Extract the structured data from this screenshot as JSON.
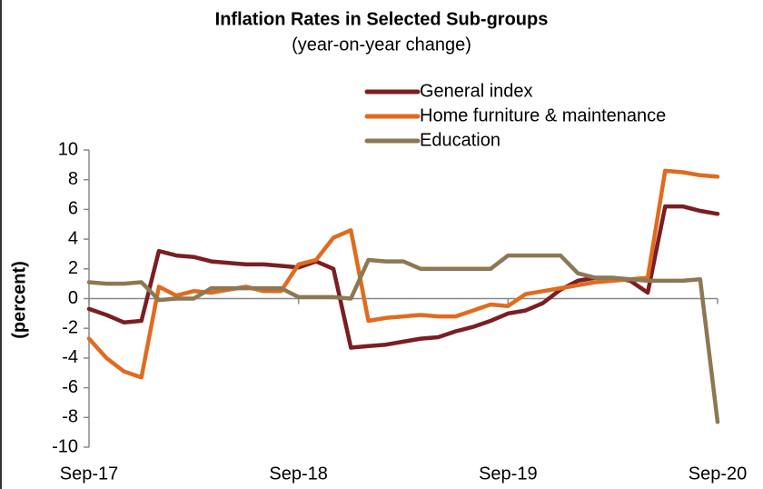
{
  "chart_data": {
    "type": "line",
    "title": "Inflation Rates in Selected Sub-groups",
    "subtitle": "(year-on-year change)",
    "y_label": "(percent)",
    "categories": [
      "Sep-17",
      null,
      null,
      null,
      null,
      null,
      null,
      null,
      null,
      null,
      null,
      null,
      "Sep-18",
      null,
      null,
      null,
      null,
      null,
      null,
      null,
      null,
      null,
      null,
      null,
      "Sep-19",
      null,
      null,
      null,
      null,
      null,
      null,
      null,
      null,
      null,
      null,
      null,
      "Sep-20"
    ],
    "series": [
      {
        "name": "General index",
        "color": "#7b1e24",
        "values": [
          -0.7,
          -1.1,
          -1.6,
          -1.5,
          3.2,
          2.9,
          2.8,
          2.5,
          2.4,
          2.3,
          2.3,
          2.2,
          2.1,
          2.5,
          2.0,
          -3.3,
          -3.2,
          -3.1,
          -2.9,
          -2.7,
          -2.6,
          -2.2,
          -1.9,
          -1.5,
          -1.0,
          -0.8,
          -0.3,
          0.6,
          1.2,
          1.4,
          1.4,
          1.2,
          0.4,
          6.2,
          6.2,
          5.9,
          5.7
        ]
      },
      {
        "name": "Home furniture & maintenance",
        "color": "#e06b1f",
        "values": [
          -2.7,
          -4.0,
          -4.9,
          -5.3,
          0.8,
          0.2,
          0.5,
          0.4,
          0.6,
          0.8,
          0.5,
          0.5,
          2.3,
          2.6,
          4.1,
          4.6,
          -1.5,
          -1.3,
          -1.2,
          -1.1,
          -1.2,
          -1.2,
          -0.8,
          -0.4,
          -0.5,
          0.3,
          0.5,
          0.7,
          0.9,
          1.1,
          1.2,
          1.3,
          1.4,
          8.6,
          8.5,
          8.3,
          8.2
        ]
      },
      {
        "name": "Education",
        "color": "#8c7853",
        "values": [
          1.1,
          1.0,
          1.0,
          1.1,
          -0.1,
          0.0,
          0.0,
          0.7,
          0.7,
          0.7,
          0.7,
          0.7,
          0.1,
          0.1,
          0.1,
          0.0,
          2.6,
          2.5,
          2.5,
          2.0,
          2.0,
          2.0,
          2.0,
          2.0,
          2.9,
          2.9,
          2.9,
          2.9,
          1.7,
          1.4,
          1.4,
          1.3,
          1.2,
          1.2,
          1.2,
          1.3,
          -8.3
        ]
      }
    ],
    "ylim": [
      -10,
      10
    ],
    "yticks": [
      -10,
      -8,
      -6,
      -4,
      -2,
      0,
      2,
      4,
      6,
      8,
      10
    ]
  }
}
